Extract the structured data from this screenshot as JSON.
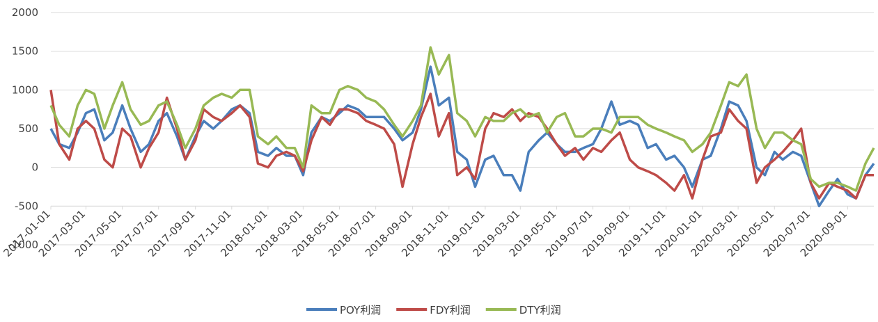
{
  "chart_data": {
    "type": "line",
    "x": [
      "2017-01-01",
      "2017-01-15",
      "2017-02-01",
      "2017-02-15",
      "2017-03-01",
      "2017-03-15",
      "2017-04-01",
      "2017-04-15",
      "2017-05-01",
      "2017-05-15",
      "2017-06-01",
      "2017-06-15",
      "2017-07-01",
      "2017-07-15",
      "2017-08-01",
      "2017-08-15",
      "2017-09-01",
      "2017-09-15",
      "2017-10-01",
      "2017-10-15",
      "2017-11-01",
      "2017-11-15",
      "2017-12-01",
      "2017-12-15",
      "2018-01-01",
      "2018-01-15",
      "2018-02-01",
      "2018-02-15",
      "2018-03-01",
      "2018-03-15",
      "2018-04-01",
      "2018-04-15",
      "2018-05-01",
      "2018-05-15",
      "2018-06-01",
      "2018-06-15",
      "2018-07-01",
      "2018-07-15",
      "2018-08-01",
      "2018-08-15",
      "2018-09-01",
      "2018-09-15",
      "2018-10-01",
      "2018-10-15",
      "2018-11-01",
      "2018-11-15",
      "2018-12-01",
      "2018-12-15",
      "2019-01-01",
      "2019-01-15",
      "2019-02-01",
      "2019-02-15",
      "2019-03-01",
      "2019-03-15",
      "2019-04-01",
      "2019-04-15",
      "2019-05-01",
      "2019-05-15",
      "2019-06-01",
      "2019-06-15",
      "2019-07-01",
      "2019-07-15",
      "2019-08-01",
      "2019-08-15",
      "2019-09-01",
      "2019-09-15",
      "2019-10-01",
      "2019-10-15",
      "2019-11-01",
      "2019-11-15",
      "2019-12-01",
      "2019-12-15",
      "2020-01-01",
      "2020-01-15",
      "2020-02-01",
      "2020-02-15",
      "2020-03-01",
      "2020-03-15",
      "2020-04-01",
      "2020-04-15",
      "2020-05-01",
      "2020-05-15",
      "2020-06-01",
      "2020-06-15",
      "2020-07-01",
      "2020-07-15",
      "2020-08-01",
      "2020-08-15",
      "2020-09-01",
      "2020-09-15",
      "2020-10-01",
      "2020-10-15"
    ],
    "series": [
      {
        "name": "POY利润",
        "color": "#4a7ebb",
        "values": [
          500,
          300,
          250,
          450,
          700,
          750,
          350,
          450,
          800,
          500,
          200,
          300,
          600,
          700,
          400,
          100,
          400,
          600,
          500,
          600,
          750,
          800,
          700,
          200,
          150,
          250,
          150,
          150,
          -100,
          450,
          650,
          600,
          700,
          800,
          750,
          650,
          650,
          650,
          500,
          350,
          450,
          750,
          1300,
          800,
          900,
          200,
          100,
          -250,
          100,
          150,
          -100,
          -100,
          -300,
          200,
          350,
          450,
          300,
          200,
          200,
          250,
          300,
          500,
          850,
          550,
          600,
          550,
          250,
          300,
          100,
          150,
          0,
          -250,
          100,
          150,
          500,
          850,
          800,
          600,
          0,
          -100,
          200,
          100,
          200,
          150,
          -200,
          -500,
          -300,
          -150,
          -350,
          -400,
          -100,
          50
        ]
      },
      {
        "name": "FDY利润",
        "color": "#be4b48",
        "values": [
          1000,
          300,
          100,
          500,
          600,
          500,
          100,
          0,
          500,
          400,
          0,
          250,
          450,
          900,
          500,
          100,
          350,
          750,
          650,
          600,
          700,
          800,
          650,
          50,
          0,
          150,
          200,
          150,
          -50,
          350,
          650,
          550,
          750,
          750,
          700,
          600,
          550,
          500,
          300,
          -250,
          300,
          650,
          950,
          400,
          700,
          -100,
          0,
          -150,
          500,
          700,
          650,
          750,
          600,
          700,
          650,
          500,
          300,
          150,
          250,
          100,
          250,
          200,
          350,
          450,
          100,
          0,
          -50,
          -100,
          -200,
          -300,
          -100,
          -400,
          100,
          400,
          450,
          750,
          600,
          500,
          -200,
          0,
          100,
          200,
          350,
          500,
          -200,
          -400,
          -200,
          -250,
          -300,
          -400,
          -100,
          -100
        ]
      },
      {
        "name": "DTY利润",
        "color": "#98b954",
        "values": [
          800,
          550,
          400,
          800,
          1000,
          950,
          500,
          800,
          1100,
          750,
          550,
          600,
          800,
          850,
          550,
          250,
          500,
          800,
          900,
          950,
          900,
          1000,
          1000,
          400,
          300,
          400,
          250,
          250,
          0,
          800,
          700,
          700,
          1000,
          1050,
          1000,
          900,
          850,
          750,
          550,
          400,
          600,
          800,
          1550,
          1200,
          1450,
          700,
          600,
          400,
          650,
          600,
          600,
          700,
          750,
          650,
          700,
          450,
          650,
          700,
          400,
          400,
          500,
          500,
          450,
          650,
          650,
          650,
          550,
          500,
          450,
          400,
          350,
          200,
          300,
          450,
          800,
          1100,
          1050,
          1200,
          500,
          250,
          450,
          450,
          350,
          300,
          -150,
          -250,
          -200,
          -200,
          -250,
          -300,
          50,
          250
        ]
      }
    ],
    "xlim": [
      "2017-01-01",
      "2020-10-15"
    ],
    "xticks": [
      "2017-01-01",
      "2017-03-01",
      "2017-05-01",
      "2017-07-01",
      "2017-09-01",
      "2017-11-01",
      "2018-01-01",
      "2018-03-01",
      "2018-05-01",
      "2018-07-01",
      "2018-09-01",
      "2018-11-01",
      "2019-01-01",
      "2019-03-01",
      "2019-05-01",
      "2019-07-01",
      "2019-09-01",
      "2019-11-01",
      "2020-01-01",
      "2020-03-01",
      "2020-05-01",
      "2020-07-01",
      "2020-09-01"
    ],
    "ylim": [
      -1000,
      2000
    ],
    "yticks": [
      -1000,
      -500,
      0,
      500,
      1000,
      1500,
      2000
    ],
    "x_axis_at": -500,
    "grid": true,
    "legend": "bottom"
  }
}
